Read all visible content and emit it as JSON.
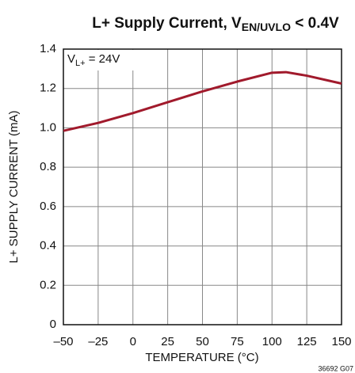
{
  "chart_data": {
    "type": "line",
    "title": [
      "L+ Supply Current, V",
      "EN/UVLO",
      " < 0.4V"
    ],
    "annotation": [
      "V",
      "L+",
      " = 24V"
    ],
    "xlabel": "TEMPERATURE (°C)",
    "ylabel": "L+ SUPPLY CURRENT (mA)",
    "note": "36692 G07",
    "x": [
      -50,
      -25,
      0,
      25,
      50,
      75,
      100,
      110,
      125,
      150
    ],
    "series": [
      {
        "name": "L+ Supply Current",
        "color": "#a11a2c",
        "values": [
          0.985,
          1.025,
          1.075,
          1.13,
          1.185,
          1.235,
          1.28,
          1.283,
          1.265,
          1.225
        ]
      }
    ],
    "xlim": [
      -50,
      150
    ],
    "xticks": [
      {
        "value": -50,
        "label": "–50"
      },
      {
        "value": -25,
        "label": "–25"
      },
      0,
      25,
      50,
      75,
      100,
      125,
      150
    ],
    "ylim": [
      0,
      1.4
    ],
    "yticks": [
      0,
      0.2,
      0.4,
      0.6,
      0.8,
      {
        "value": 1,
        "label": "1.0"
      },
      1.2,
      1.4
    ],
    "grid": true
  }
}
